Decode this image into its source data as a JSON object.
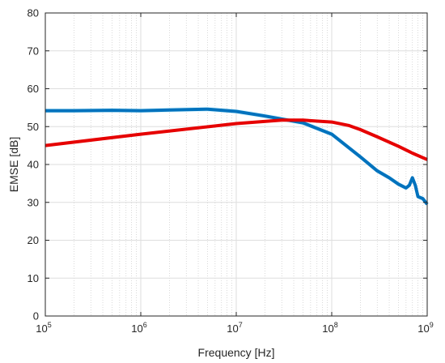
{
  "chart_data": {
    "type": "line",
    "title": "",
    "xlabel": "Frequency [Hz]",
    "ylabel": "EMSE [dB]",
    "xscale": "log",
    "xlim": [
      100000,
      1000000000
    ],
    "ylim": [
      0,
      80
    ],
    "grid": true,
    "legend": "none",
    "x_ticks": [
      {
        "base": "10",
        "exp": "5",
        "value": 100000
      },
      {
        "base": "10",
        "exp": "6",
        "value": 1000000
      },
      {
        "base": "10",
        "exp": "7",
        "value": 10000000
      },
      {
        "base": "10",
        "exp": "8",
        "value": 100000000
      },
      {
        "base": "10",
        "exp": "9",
        "value": 1000000000
      }
    ],
    "y_ticks": [
      "0",
      "10",
      "20",
      "30",
      "40",
      "50",
      "60",
      "70",
      "80"
    ],
    "series": [
      {
        "color": "#0072bd",
        "shade_color": "#bfefff",
        "x": [
          100000,
          200000,
          500000,
          1000000,
          2000000,
          5000000,
          10000000,
          20000000,
          50000000,
          100000000,
          200000000,
          300000000,
          400000000,
          500000000,
          600000000,
          650000000,
          700000000,
          750000000,
          800000000,
          900000000,
          1000000000
        ],
        "y": [
          54.2,
          54.2,
          54.3,
          54.2,
          54.4,
          54.6,
          54.0,
          52.8,
          51.0,
          48.0,
          42.0,
          38.3,
          36.5,
          34.8,
          33.8,
          34.5,
          36.5,
          34.5,
          31.5,
          31.0,
          29.5
        ]
      },
      {
        "color": "#e60000",
        "x": [
          100000,
          1000000,
          10000000,
          30000000,
          50000000,
          100000000,
          150000000,
          200000000,
          300000000,
          500000000,
          700000000,
          1000000000
        ],
        "y": [
          45.0,
          48.0,
          50.8,
          51.7,
          51.7,
          51.2,
          50.3,
          49.2,
          47.3,
          44.8,
          43.0,
          41.3
        ]
      }
    ]
  }
}
